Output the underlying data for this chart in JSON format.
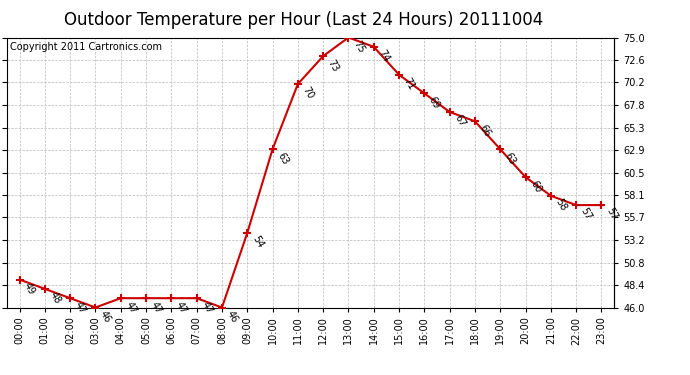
{
  "title": "Outdoor Temperature per Hour (Last 24 Hours) 20111004",
  "copyright": "Copyright 2011 Cartronics.com",
  "hours": [
    "00:00",
    "01:00",
    "02:00",
    "03:00",
    "04:00",
    "05:00",
    "06:00",
    "07:00",
    "08:00",
    "09:00",
    "10:00",
    "11:00",
    "12:00",
    "13:00",
    "14:00",
    "15:00",
    "16:00",
    "17:00",
    "18:00",
    "19:00",
    "20:00",
    "21:00",
    "22:00",
    "23:00"
  ],
  "temps": [
    49,
    48,
    47,
    46,
    47,
    47,
    47,
    47,
    46,
    54,
    63,
    70,
    73,
    75,
    74,
    71,
    69,
    67,
    66,
    63,
    60,
    58,
    57,
    57
  ],
  "ylim": [
    46.0,
    75.0
  ],
  "yticks": [
    46.0,
    48.4,
    50.8,
    53.2,
    55.7,
    58.1,
    60.5,
    62.9,
    65.3,
    67.8,
    70.2,
    72.6,
    75.0
  ],
  "line_color": "#cc0000",
  "bg_color": "#ffffff",
  "grid_color": "#bbbbbb",
  "title_fontsize": 12,
  "copyright_fontsize": 7,
  "label_fontsize": 7,
  "tick_fontsize": 7
}
